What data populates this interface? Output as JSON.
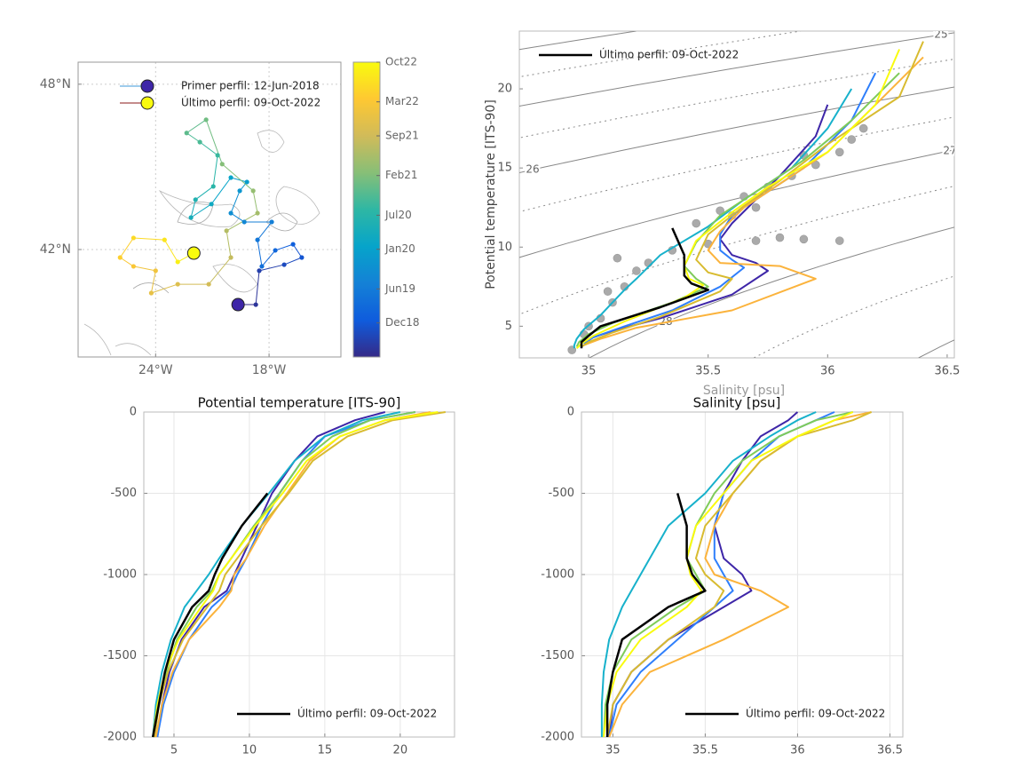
{
  "chart_data": [
    {
      "type": "map",
      "xlim": [
        -28.1,
        -14.2
      ],
      "ylim": [
        38.1,
        48.8
      ],
      "xticks": [
        {
          "value": -24,
          "label": "24°W"
        },
        {
          "value": -18,
          "label": "18°W"
        }
      ],
      "yticks": [
        {
          "value": 42,
          "label": "42°N"
        },
        {
          "value": 48,
          "label": "48°N"
        }
      ],
      "grid": true,
      "x": [
        -19.64,
        -18.7,
        -18.52,
        -17.2,
        -16.27,
        -16.73,
        -17.67,
        -18.38,
        -18.61,
        -17.86,
        -19.31,
        -20.02,
        -19.55,
        -19.17,
        -20.02,
        -21.05,
        -22.13,
        -21.89,
        -20.95,
        -20.72,
        -21.66,
        -22.36,
        -21.33,
        -20.48,
        -18.84,
        -18.61,
        -20.25,
        -20.02,
        -21.19,
        -22.83,
        -24.23,
        -24.0,
        -25.17,
        -25.88,
        -25.17,
        -23.53,
        -22.83,
        -21.98
      ],
      "y": [
        40.0,
        40.0,
        41.23,
        41.45,
        41.71,
        42.19,
        41.97,
        41.39,
        42.35,
        43.0,
        43.0,
        43.32,
        44.13,
        44.45,
        44.61,
        43.65,
        43.16,
        43.81,
        44.29,
        45.42,
        45.9,
        46.23,
        46.71,
        45.1,
        44.13,
        43.32,
        42.68,
        41.71,
        40.74,
        40.74,
        40.42,
        41.23,
        41.39,
        41.71,
        42.42,
        42.35,
        41.55,
        41.87
      ],
      "legend": [
        {
          "name": "Primer perfil: 12-Jun-2018",
          "color": "#3e26a8",
          "line_color": "#3d9ad9"
        },
        {
          "name": "Último perfil: 09-Oct-2022",
          "color": "#f9fb0e",
          "line_color": "#8b1a1a"
        }
      ],
      "colorbar": {
        "clim": [
          "2018-06",
          "2022-10"
        ],
        "ticks": [
          {
            "value": "2018-12",
            "label": "Dec18"
          },
          {
            "value": "2019-06",
            "label": "Jun19"
          },
          {
            "value": "2020-01",
            "label": "Jan20"
          },
          {
            "value": "2020-07",
            "label": "Jul20"
          },
          {
            "value": "2021-02",
            "label": "Feb21"
          },
          {
            "value": "2021-09",
            "label": "Sep21"
          },
          {
            "value": "2022-03",
            "label": "Mar22"
          },
          {
            "value": "2022-10",
            "label": "Oct22"
          }
        ],
        "colors": [
          "#352a87",
          "#0f5cdd",
          "#1481d6",
          "#06a4ca",
          "#2eb7a4",
          "#87bf77",
          "#d1bb59",
          "#fec832",
          "#f9fb0e"
        ]
      }
    },
    {
      "type": "ts",
      "xlabel": "Salinity [psu]",
      "ylabel": "Potential temperature [ITS-90]",
      "xlim": [
        34.71,
        36.53
      ],
      "ylim": [
        3,
        23.65
      ],
      "xticks": [
        35,
        35.5,
        36,
        36.5
      ],
      "yticks": [
        5,
        10,
        15,
        20
      ],
      "legend": "upper left",
      "isopycnals": {
        "levels": [
          24,
          24.5,
          25,
          25.5,
          26,
          26.5,
          27,
          27.5,
          28,
          28.5,
          29
        ],
        "labels": [
          25,
          26,
          27,
          28
        ],
        "color": "#888888"
      },
      "reference_points": {
        "color": "#aaaaaa",
        "x": [
          34.93,
          34.98,
          35.05,
          35.1,
          35.15,
          35.2,
          35.12,
          35.25,
          35.35,
          35.5,
          35.7,
          35.9,
          36.05,
          35.45,
          35.55,
          35.65,
          35.75,
          35.85,
          35.95,
          36.05,
          36.1,
          36.15,
          35.9,
          35.7,
          35.6,
          35.0,
          35.08,
          35.8
        ],
        "y": [
          3.5,
          4.5,
          5.5,
          6.5,
          7.5,
          8.5,
          9.3,
          9.0,
          9.8,
          10.2,
          10.4,
          10.5,
          10.4,
          11.5,
          12.3,
          13.2,
          13.8,
          14.5,
          15.2,
          16,
          16.8,
          17.5,
          15.8,
          12.5,
          12,
          5.0,
          7.2,
          10.6
        ]
      },
      "series": [
        {
          "color": "#3e26a8",
          "x": [
            36.0,
            35.95,
            35.8,
            35.7,
            35.6,
            35.55,
            35.6,
            35.7,
            35.75,
            35.6,
            35.3,
            35.1,
            35.0,
            34.98
          ],
          "y": [
            19,
            17,
            14.5,
            13,
            11.5,
            10.5,
            9.5,
            9,
            8.5,
            7,
            5.5,
            4.7,
            4.2,
            3.9
          ]
        },
        {
          "color": "#2f7ffb",
          "x": [
            36.2,
            36.1,
            35.9,
            35.75,
            35.6,
            35.55,
            35.55,
            35.6,
            35.65,
            35.55,
            35.35,
            35.15,
            35.02,
            34.98
          ],
          "y": [
            21,
            18,
            15,
            13.5,
            12,
            10.8,
            9.8,
            9.2,
            8.7,
            7.5,
            6,
            5,
            4.3,
            3.9
          ]
        },
        {
          "color": "#17b1cb",
          "x": [
            36.1,
            36.0,
            35.85,
            35.65,
            35.5,
            35.3,
            35.2,
            35.15,
            35.1,
            35.05,
            34.98,
            34.95,
            34.94,
            34.94
          ],
          "y": [
            20,
            17.5,
            15,
            13,
            11.3,
            9.5,
            8,
            7.3,
            6.5,
            5.7,
            4.8,
            4.2,
            3.8,
            3.6
          ]
        },
        {
          "color": "#7fcb5a",
          "x": [
            36.3,
            36.1,
            35.9,
            35.7,
            35.55,
            35.45,
            35.4,
            35.45,
            35.5,
            35.35,
            35.1,
            35.0,
            34.96,
            34.95
          ],
          "y": [
            21,
            18,
            15.5,
            13.5,
            12,
            10.3,
            8.8,
            8,
            7.5,
            6.5,
            5.2,
            4.5,
            4,
            3.7
          ]
        },
        {
          "color": "#fbb33c",
          "x": [
            36.4,
            36.2,
            36.0,
            35.8,
            35.65,
            35.55,
            35.5,
            35.55,
            35.8,
            35.95,
            35.6,
            35.2,
            35.05,
            34.98
          ],
          "y": [
            22,
            19,
            16,
            14,
            12.5,
            11,
            9.8,
            9,
            8.8,
            8,
            6,
            4.9,
            4.2,
            3.8
          ]
        },
        {
          "color": "#d8bb30",
          "x": [
            36.4,
            36.3,
            36.0,
            35.8,
            35.65,
            35.5,
            35.45,
            35.5,
            35.6,
            35.55,
            35.3,
            35.1,
            35.0,
            34.97
          ],
          "y": [
            23,
            19.5,
            16.5,
            14.2,
            12.6,
            10.8,
            9.2,
            8.4,
            8.0,
            7.2,
            5.6,
            4.6,
            4.0,
            3.7
          ]
        },
        {
          "color": "#f9fb0e",
          "x": [
            36.3,
            36.2,
            36.0,
            35.75,
            35.6,
            35.45,
            35.4,
            35.42,
            35.48,
            35.4,
            35.15,
            35.02,
            34.97,
            34.95
          ],
          "y": [
            22.5,
            19,
            16,
            13.8,
            12.2,
            10.4,
            8.8,
            8,
            7.6,
            6.8,
            5.3,
            4.4,
            3.9,
            3.6
          ]
        },
        {
          "name": "Último perfil: 09-Oct-2022",
          "color": "#000000",
          "x": [
            null,
            null,
            null,
            null,
            35.35,
            35.4,
            35.4,
            35.43,
            35.5,
            35.3,
            35.05,
            35.0,
            34.97,
            34.97
          ],
          "y": [
            null,
            null,
            null,
            null,
            11.2,
            9.5,
            8.2,
            7.7,
            7.3,
            6.2,
            5.0,
            4.4,
            4.0,
            3.6
          ]
        }
      ]
    },
    {
      "type": "profile",
      "title": "Potential temperature [ITS-90]",
      "xlim": [
        3,
        23.6
      ],
      "ylim": [
        -2000,
        0
      ],
      "xticks": [
        5,
        10,
        15,
        20
      ],
      "yticks": [
        0,
        -500,
        -1000,
        -1500,
        -2000
      ],
      "grid": true,
      "legend": "lower right",
      "y": [
        0,
        -50,
        -150,
        -300,
        -500,
        -700,
        -900,
        -1000,
        -1100,
        -1200,
        -1400,
        -1600,
        -1800,
        -2000
      ],
      "series": [
        {
          "color": "#3e26a8",
          "x": [
            19,
            17,
            14.5,
            13,
            11.5,
            10.5,
            9.5,
            9,
            8.5,
            7,
            5.5,
            4.7,
            4.2,
            3.9
          ]
        },
        {
          "color": "#2f7ffb",
          "x": [
            21,
            18,
            15,
            13.5,
            12,
            10.8,
            9.8,
            9.2,
            8.7,
            7.5,
            6,
            5,
            4.3,
            3.9
          ]
        },
        {
          "color": "#17b1cb",
          "x": [
            20,
            17.5,
            15,
            13,
            11.3,
            9.5,
            8,
            7.3,
            6.5,
            5.7,
            4.8,
            4.2,
            3.8,
            3.6
          ]
        },
        {
          "color": "#7fcb5a",
          "x": [
            21,
            18,
            15.5,
            13.5,
            12,
            10.3,
            8.8,
            8,
            7.5,
            6.5,
            5.2,
            4.5,
            4,
            3.7
          ]
        },
        {
          "color": "#fbb33c",
          "x": [
            22,
            19,
            16,
            14,
            12.5,
            11,
            9.8,
            9,
            8.8,
            8,
            6,
            4.9,
            4.2,
            3.8
          ]
        },
        {
          "color": "#d8bb30",
          "x": [
            23,
            19.5,
            16.5,
            14.2,
            12.6,
            10.8,
            9.2,
            8.4,
            8.0,
            7.2,
            5.6,
            4.6,
            4.0,
            3.7
          ]
        },
        {
          "color": "#f9fb0e",
          "x": [
            22.5,
            19,
            16,
            13.8,
            12.2,
            10.4,
            8.8,
            8,
            7.6,
            6.8,
            5.3,
            4.4,
            3.9,
            3.6
          ]
        },
        {
          "name": "Último perfil: 09-Oct-2022",
          "color": "#000000",
          "x": [
            null,
            null,
            null,
            null,
            11.2,
            9.5,
            8.2,
            7.7,
            7.3,
            6.2,
            5.0,
            4.4,
            4.0,
            3.6
          ]
        }
      ]
    },
    {
      "type": "profile",
      "title": "Salinity [psu]",
      "xlim": [
        34.83,
        36.57
      ],
      "ylim": [
        -2000,
        0
      ],
      "xticks": [
        35,
        35.5,
        36,
        36.5
      ],
      "yticks": [
        0,
        -500,
        -1000,
        -1500,
        -2000
      ],
      "grid": true,
      "legend": "lower right",
      "y": [
        0,
        -50,
        -150,
        -300,
        -500,
        -700,
        -900,
        -1000,
        -1100,
        -1200,
        -1400,
        -1600,
        -1800,
        -2000
      ],
      "series": [
        {
          "color": "#3e26a8",
          "x": [
            36.0,
            35.95,
            35.8,
            35.7,
            35.6,
            35.55,
            35.6,
            35.7,
            35.75,
            35.6,
            35.3,
            35.1,
            35.0,
            34.98
          ]
        },
        {
          "color": "#2f7ffb",
          "x": [
            36.2,
            36.1,
            35.9,
            35.75,
            35.6,
            35.55,
            35.55,
            35.6,
            35.65,
            35.55,
            35.35,
            35.15,
            35.02,
            34.98
          ]
        },
        {
          "color": "#17b1cb",
          "x": [
            36.1,
            36.0,
            35.85,
            35.65,
            35.5,
            35.3,
            35.2,
            35.15,
            35.1,
            35.05,
            34.98,
            34.95,
            34.94,
            34.94
          ]
        },
        {
          "color": "#7fcb5a",
          "x": [
            36.3,
            36.1,
            35.9,
            35.7,
            35.55,
            35.45,
            35.4,
            35.45,
            35.5,
            35.35,
            35.1,
            35.0,
            34.96,
            34.95
          ]
        },
        {
          "color": "#fbb33c",
          "x": [
            36.4,
            36.2,
            36.0,
            35.8,
            35.65,
            35.55,
            35.5,
            35.55,
            35.8,
            35.95,
            35.6,
            35.2,
            35.05,
            34.98
          ]
        },
        {
          "color": "#d8bb30",
          "x": [
            36.4,
            36.3,
            36.0,
            35.8,
            35.65,
            35.5,
            35.45,
            35.5,
            35.6,
            35.55,
            35.3,
            35.1,
            35.0,
            34.97
          ]
        },
        {
          "color": "#f9fb0e",
          "x": [
            36.3,
            36.2,
            36.0,
            35.75,
            35.6,
            35.45,
            35.4,
            35.42,
            35.48,
            35.4,
            35.15,
            35.02,
            34.97,
            34.95
          ]
        },
        {
          "name": "Último perfil: 09-Oct-2022",
          "color": "#000000",
          "x": [
            null,
            null,
            null,
            null,
            35.35,
            35.4,
            35.4,
            35.43,
            35.5,
            35.3,
            35.05,
            35.0,
            34.97,
            34.97
          ]
        }
      ]
    }
  ]
}
